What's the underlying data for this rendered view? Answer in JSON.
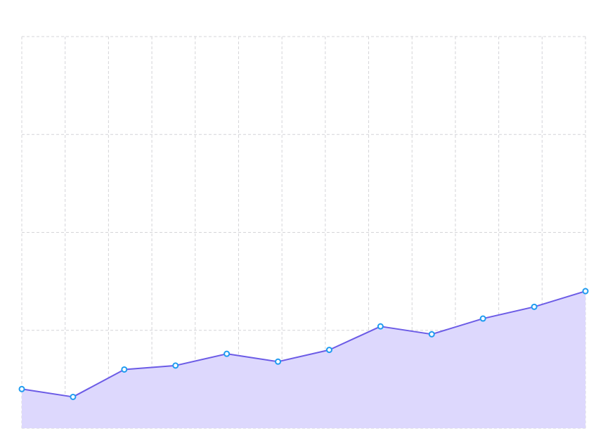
{
  "chart_data": {
    "type": "area",
    "title": "",
    "xlabel": "",
    "ylabel": "",
    "x": [
      0,
      1,
      2,
      3,
      4,
      5,
      6,
      7,
      8,
      9,
      10,
      11
    ],
    "series": [
      {
        "values": [
          20,
          16,
          30,
          32,
          38,
          34,
          40,
          52,
          48,
          56,
          62,
          70
        ]
      }
    ],
    "xlim": [
      0,
      11
    ],
    "ylim": [
      0,
      200
    ],
    "grid": true,
    "legend": "none",
    "colors": {
      "line": "#6b5be6",
      "fill": "#ddd8fd",
      "point_stroke": "#1e9bf0",
      "grid": "#d4d4d8"
    }
  }
}
